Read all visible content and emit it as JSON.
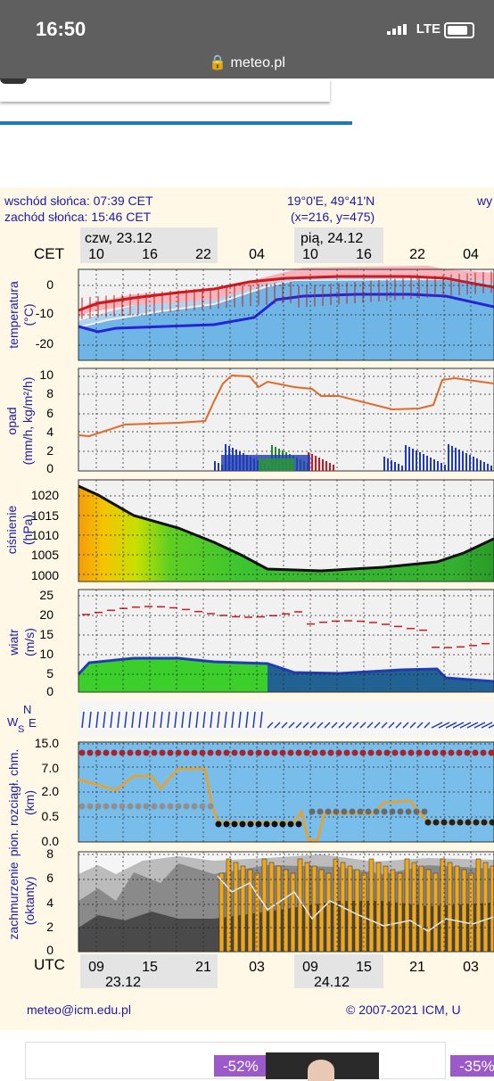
{
  "status": {
    "time": "16:50",
    "network": "LTE"
  },
  "browser": {
    "url": "meteo.pl"
  },
  "meteogram": {
    "sunrise": "wschód słońca: 07:39 CET",
    "sunset": "zachód słońca: 15:46 CET",
    "coords": "19°0'E, 49°41'N",
    "grid": "(x=216,  y=475)",
    "right_cut": "wy",
    "cet_label": "CET",
    "day1_top": "czw, 23.12",
    "day2_top": "pią, 24.12",
    "cet_hours": [
      "10",
      "16",
      "22",
      "04",
      "10",
      "16",
      "22",
      "04"
    ],
    "utc_label": "UTC",
    "utc_hours": [
      "09",
      "15",
      "21",
      "03",
      "09",
      "15",
      "21",
      "03"
    ],
    "day1_bottom": "23.12",
    "day2_bottom": "24.12",
    "panels": {
      "temperature": {
        "label1": "temperatura",
        "label2": "(°C)",
        "ticks": [
          "0",
          "-10",
          "-20"
        ]
      },
      "precip": {
        "label1": "opad",
        "label2": "(mm/h, kg/m²/h)",
        "ticks": [
          "10",
          "8",
          "6",
          "4",
          "2",
          "0"
        ]
      },
      "pressure": {
        "label1": "ciśnienie",
        "label2": "(hPa)",
        "ticks": [
          "1020",
          "1015",
          "1010",
          "1005",
          "1000"
        ]
      },
      "wind": {
        "label1": "wiatr",
        "label2": "(m/s)",
        "ticks": [
          "25",
          "20",
          "15",
          "10",
          "5",
          "0"
        ]
      },
      "winddir": {
        "n": "N",
        "w": "W",
        "s": "S",
        "e": "E"
      },
      "visibility": {
        "label1": "pion. rozciągł. chm.",
        "label2": "(km)",
        "ticks": [
          "15.0",
          "7.0",
          "2.0",
          "0.5",
          "0.0"
        ]
      },
      "clouds": {
        "label1": "zachmurzenie",
        "label2": "(oktanty)",
        "ticks": [
          "8",
          "6",
          "4",
          "2",
          "0"
        ]
      }
    },
    "footer_email": "meteo@icm.edu.pl",
    "footer_copy": "© 2007-2021 ICM, U"
  },
  "ads": {
    "badge1": "-52%",
    "badge2": "-35%"
  },
  "colors": {
    "statusbar": "#5f5f5f",
    "panel_bg": "#fff8e6",
    "accent_blue": "#1d79ba",
    "text_blue": "#1a1aa5",
    "badge": "#9b59c9"
  }
}
